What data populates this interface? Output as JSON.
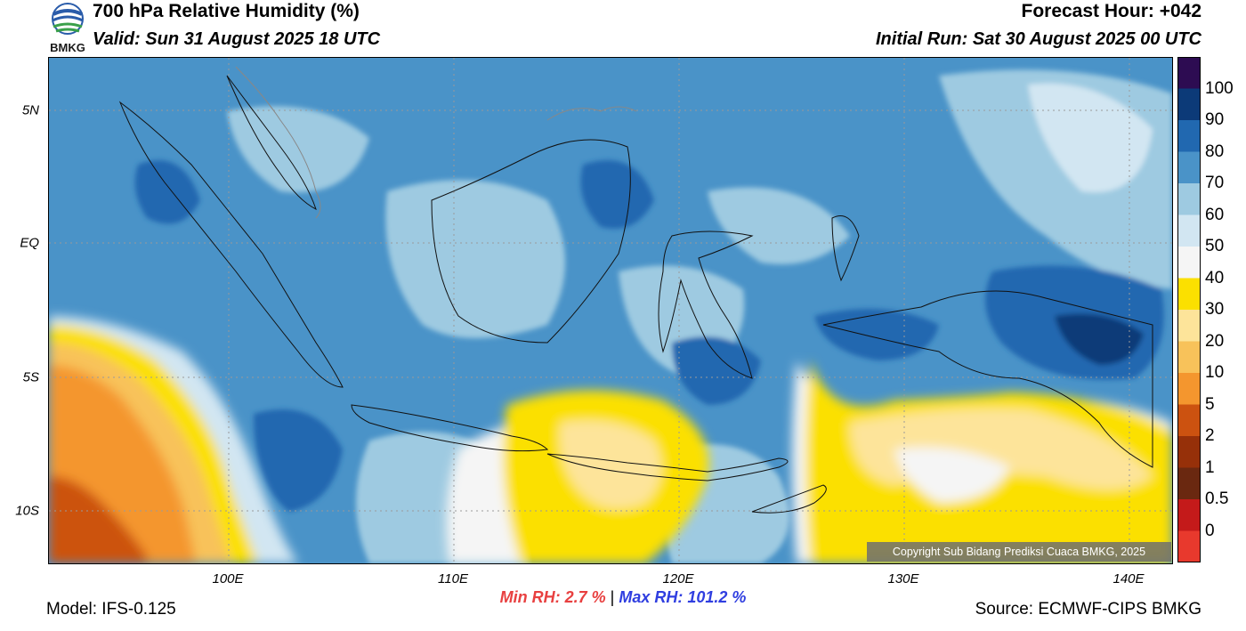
{
  "header": {
    "title": "700 hPa Relative Humidity (%)",
    "valid": "Valid: Sun 31 August 2025 18 UTC",
    "forecast_hour": "Forecast Hour: +042",
    "initial_run": "Initial Run: Sat 30 August 2025 00 UTC"
  },
  "logo": {
    "text": "BMKG",
    "icon": "bmkg-logo-icon"
  },
  "map": {
    "latitude_labels": [
      "5N",
      "EQ",
      "5S",
      "10S"
    ],
    "longitude_labels": [
      "100E",
      "110E",
      "120E",
      "130E",
      "140E"
    ],
    "copyright": "Copyright Sub Bidang Prediksi Cuaca BMKG, 2025",
    "colors": {
      "rh_0": "#e8392d",
      "rh_0_5": "#c41a1a",
      "rh_1": "#6a2810",
      "rh_2": "#963009",
      "rh_5": "#cc5210",
      "rh_10": "#f4962e",
      "rh_20": "#f8c25a",
      "rh_30": "#fde49a",
      "rh_40": "#fbe000",
      "rh_50": "#f5f5f5",
      "rh_60": "#d2e6f2",
      "rh_70": "#9ecae1",
      "rh_80": "#4a93c8",
      "rh_90": "#2168b0",
      "rh_100": "#0c3a78",
      "rh_max": "#2d0c52"
    }
  },
  "colorbar": {
    "labels": [
      "100",
      "90",
      "80",
      "70",
      "60",
      "50",
      "40",
      "30",
      "20",
      "10",
      "5",
      "2",
      "1",
      "0.5",
      "0"
    ],
    "colors": [
      "#2d0c52",
      "#0c3a78",
      "#2168b0",
      "#4a93c8",
      "#9ecae1",
      "#d2e6f2",
      "#f5f5f5",
      "#fbe000",
      "#fde49a",
      "#f8c25a",
      "#f4962e",
      "#cc5210",
      "#963009",
      "#6a2810",
      "#c41a1a",
      "#e8392d"
    ]
  },
  "stats": {
    "min_rh": "Min RH:   2.7 %",
    "separator": "|",
    "max_rh": "Max RH: 101.2 %"
  },
  "footer": {
    "model": "Model: IFS-0.125",
    "source": "Source: ECMWF-CIPS BMKG"
  }
}
